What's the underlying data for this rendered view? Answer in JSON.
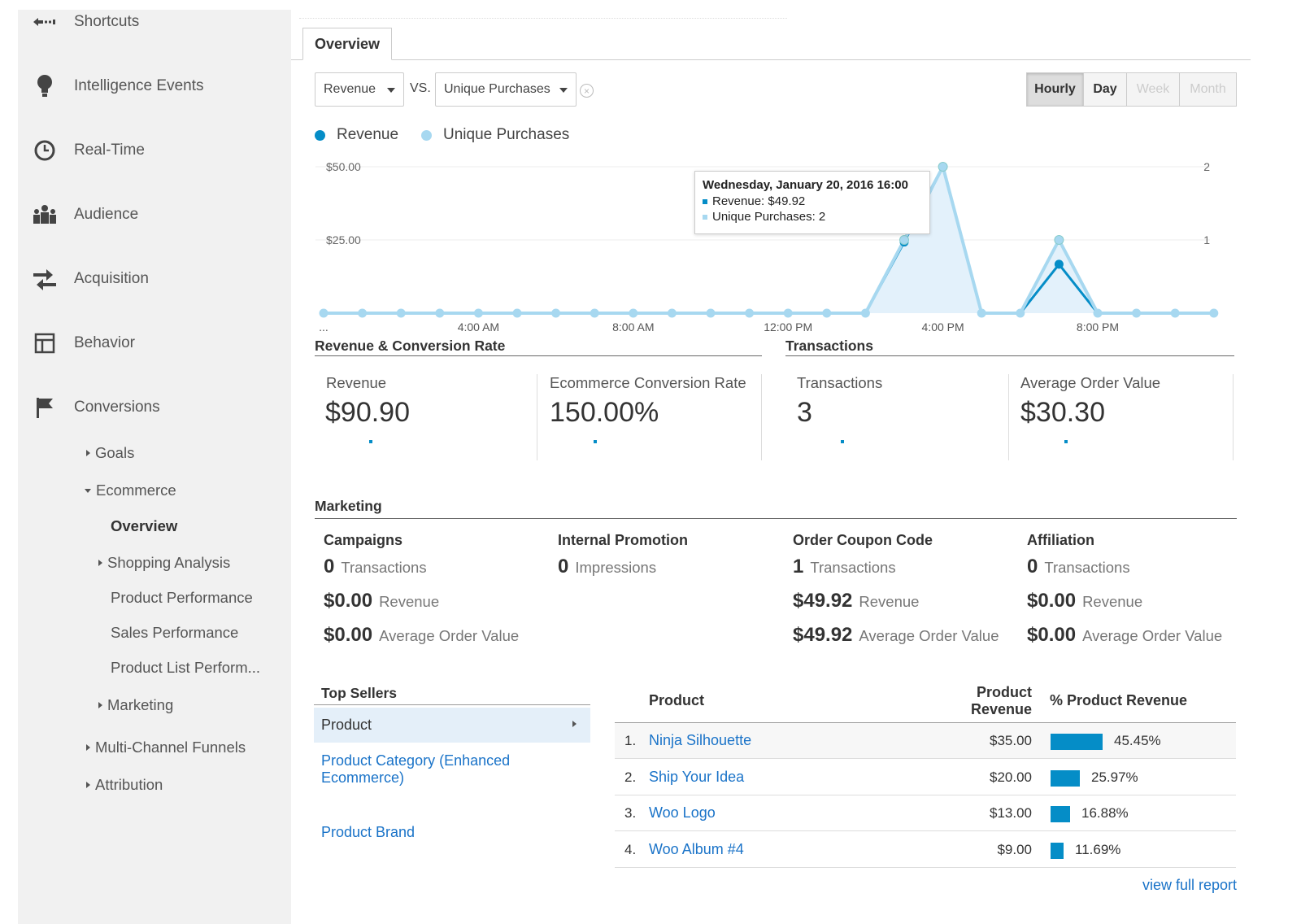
{
  "sidebar": {
    "items": [
      {
        "label": "Shortcuts",
        "icon": "shortcuts-icon"
      },
      {
        "label": "Intelligence Events",
        "icon": "lightbulb-icon"
      },
      {
        "label": "Real-Time",
        "icon": "clock-icon"
      },
      {
        "label": "Audience",
        "icon": "people-icon"
      },
      {
        "label": "Acquisition",
        "icon": "arrows-icon"
      },
      {
        "label": "Behavior",
        "icon": "layout-icon"
      },
      {
        "label": "Conversions",
        "icon": "flag-icon"
      }
    ],
    "sub": {
      "goals": "Goals",
      "ecommerce": "Ecommerce",
      "overview": "Overview",
      "shopping_analysis": "Shopping Analysis",
      "product_performance": "Product Performance",
      "sales_performance": "Sales Performance",
      "product_list": "Product List Perform...",
      "marketing": "Marketing",
      "multi_channel": "Multi-Channel Funnels",
      "attribution": "Attribution"
    }
  },
  "tab": {
    "label": "Overview"
  },
  "controls": {
    "metric1": "Revenue",
    "vs": "VS.",
    "metric2": "Unique Purchases",
    "granularity": [
      "Hourly",
      "Day",
      "Week",
      "Month"
    ],
    "selected_granularity": "Hourly"
  },
  "colors": {
    "revenue": "#058dc7",
    "unique": "#a7d8f0",
    "link": "#1a73c8"
  },
  "chart_data": {
    "type": "line",
    "legend": [
      "Revenue",
      "Unique Purchases"
    ],
    "x_ticks": [
      "...",
      "4:00 AM",
      "8:00 AM",
      "12:00 PM",
      "4:00 PM",
      "8:00 PM"
    ],
    "left_axis": {
      "ticks": [
        "$50.00",
        "$25.00"
      ],
      "ylim": [
        0,
        50
      ]
    },
    "right_axis": {
      "ticks": [
        "2",
        "1"
      ],
      "ylim": [
        0,
        2
      ]
    },
    "x_hours": [
      0,
      1,
      2,
      3,
      4,
      5,
      6,
      7,
      8,
      9,
      10,
      11,
      12,
      13,
      14,
      15,
      16,
      17,
      18,
      19,
      20,
      21,
      22,
      23
    ],
    "series": [
      {
        "name": "Revenue",
        "axis": "left",
        "values": [
          0,
          0,
          0,
          0,
          0,
          0,
          0,
          0,
          0,
          0,
          0,
          0,
          0,
          0,
          0,
          24.29,
          49.92,
          0,
          0,
          16.69,
          0,
          0,
          0,
          0
        ]
      },
      {
        "name": "Unique Purchases",
        "axis": "right",
        "values": [
          0,
          0,
          0,
          0,
          0,
          0,
          0,
          0,
          0,
          0,
          0,
          0,
          0,
          0,
          0,
          1,
          2,
          0,
          0,
          1,
          0,
          0,
          0,
          0
        ]
      }
    ],
    "tooltip": {
      "title": "Wednesday, January 20, 2016 16:00",
      "revenue": "Revenue: $49.92",
      "unique": "Unique Purchases: 2"
    }
  },
  "rev_conv": {
    "title": "Revenue & Conversion Rate",
    "revenue_label": "Revenue",
    "revenue_value": "$90.90",
    "conv_label": "Ecommerce Conversion Rate",
    "conv_value": "150.00%"
  },
  "transactions": {
    "title": "Transactions",
    "tx_label": "Transactions",
    "tx_value": "3",
    "aov_label": "Average Order Value",
    "aov_value": "$30.30"
  },
  "marketing": {
    "title": "Marketing",
    "campaigns": {
      "head": "Campaigns",
      "v1": "0",
      "l1": "Transactions",
      "v2": "$0.00",
      "l2": "Revenue",
      "v3": "$0.00",
      "l3": "Average Order Value"
    },
    "internal": {
      "head": "Internal Promotion",
      "v1": "0",
      "l1": "Impressions"
    },
    "coupon": {
      "head": "Order Coupon Code",
      "v1": "1",
      "l1": "Transactions",
      "v2": "$49.92",
      "l2": "Revenue",
      "v3": "$49.92",
      "l3": "Average Order Value"
    },
    "affiliation": {
      "head": "Affiliation",
      "v1": "0",
      "l1": "Transactions",
      "v2": "$0.00",
      "l2": "Revenue",
      "v3": "$0.00",
      "l3": "Average Order Value"
    }
  },
  "top_sellers": {
    "title": "Top Sellers",
    "selected": "Product",
    "options": [
      "Product Category (Enhanced Ecommerce)",
      "Product Brand"
    ]
  },
  "table": {
    "col_product": "Product",
    "col_revenue_1": "Product",
    "col_revenue_2": "Revenue",
    "col_pct": "% Product Revenue",
    "rows": [
      {
        "num": "1.",
        "name": "Ninja Silhouette",
        "revenue": "$35.00",
        "pct": "45.45%",
        "share": 0.4545
      },
      {
        "num": "2.",
        "name": "Ship Your Idea",
        "revenue": "$20.00",
        "pct": "25.97%",
        "share": 0.2597
      },
      {
        "num": "3.",
        "name": "Woo Logo",
        "revenue": "$13.00",
        "pct": "16.88%",
        "share": 0.1688
      },
      {
        "num": "4.",
        "name": "Woo Album #4",
        "revenue": "$9.00",
        "pct": "11.69%",
        "share": 0.1169
      }
    ],
    "view_full": "view full report"
  }
}
